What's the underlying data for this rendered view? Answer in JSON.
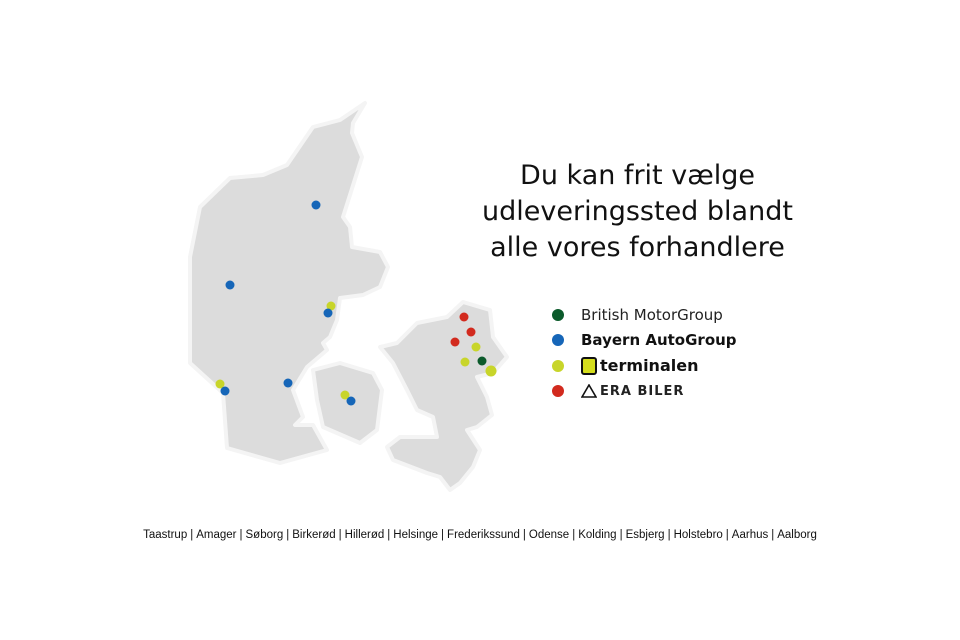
{
  "headline": [
    "Du kan frit vælge",
    "udleveringssted blandt",
    "alle vores forhandlere"
  ],
  "legend": [
    {
      "label": "British MotorGroup",
      "color": "#0b5a2b"
    },
    {
      "label": "Bayern AutoGroup",
      "color": "#1666b8"
    },
    {
      "label": "terminalen",
      "color": "#c8d52a",
      "icon": "terminalen-logo"
    },
    {
      "label": "ERA BILER",
      "color": "#d22a1e",
      "icon": "era-triangle-logo"
    }
  ],
  "colors": {
    "land": "#dcdcdc",
    "coast": "#f4f4f4"
  },
  "cities": [
    "Taastrup",
    "Amager",
    "Søborg",
    "Birkerød",
    "Hillerød",
    "Helsinge",
    "Frederikssund",
    "Odense",
    "Kolding",
    "Esbjerg",
    "Holstebro",
    "Aarhus",
    "Aalborg"
  ]
}
